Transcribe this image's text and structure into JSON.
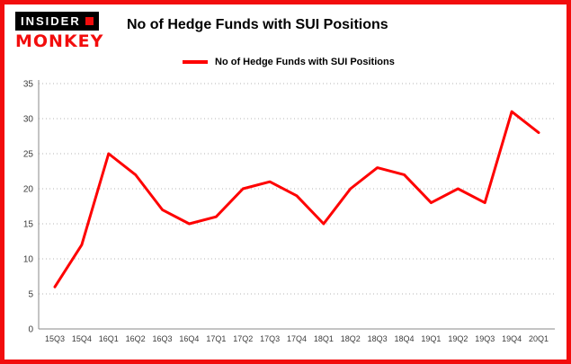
{
  "brand": {
    "line1": "INSIDER",
    "line2": "MONKEY"
  },
  "title": "No of Hedge Funds with SUI Positions",
  "legend": "No of Hedge Funds with SUI Positions",
  "colors": {
    "line": "#fe0101",
    "border": "#f20d0d",
    "grid": "#b5b5b5",
    "axis": "#8a8a8a",
    "tick_text": "#3c3c3c"
  },
  "chart_data": {
    "type": "line",
    "title": "No of Hedge Funds with SUI Positions",
    "xlabel": "",
    "ylabel": "",
    "categories": [
      "15Q3",
      "15Q4",
      "16Q1",
      "16Q2",
      "16Q3",
      "16Q4",
      "17Q1",
      "17Q2",
      "17Q3",
      "17Q4",
      "18Q1",
      "18Q2",
      "18Q3",
      "18Q4",
      "19Q1",
      "19Q2",
      "19Q3",
      "19Q4",
      "20Q1"
    ],
    "series": [
      {
        "name": "No of Hedge Funds with SUI Positions",
        "values": [
          6,
          12,
          25,
          22,
          17,
          15,
          16,
          20,
          21,
          19,
          15,
          20,
          23,
          22,
          18,
          20,
          18,
          31,
          28
        ]
      }
    ],
    "ylim": [
      0,
      35
    ],
    "yticks": [
      0,
      5,
      10,
      15,
      20,
      25,
      30,
      35
    ],
    "grid": true,
    "grid_style": "dotted",
    "legend_position": "top-left"
  }
}
